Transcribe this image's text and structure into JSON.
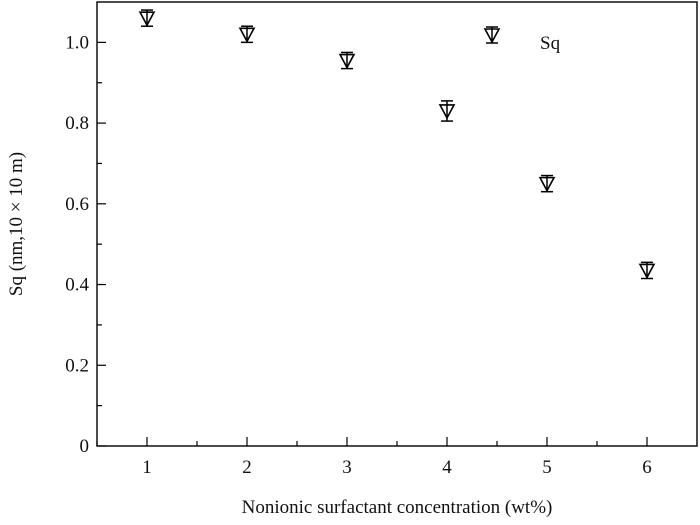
{
  "chart_data": {
    "type": "scatter",
    "title": "",
    "xlabel": "Nonionic surfactant concentration (wt%)",
    "ylabel": "Sq (nm,10 × 10 m)",
    "xlim": [
      0.5,
      6.5
    ],
    "ylim": [
      0,
      1.1
    ],
    "x_ticks": [
      "1",
      "2",
      "3",
      "4",
      "5",
      "6"
    ],
    "y_ticks": [
      "0",
      "0.2",
      "0.4",
      "0.6",
      "0.8",
      "1.0"
    ],
    "grid": false,
    "legend": {
      "position": "top-right",
      "entries": [
        "Sq"
      ]
    },
    "series": [
      {
        "name": "Sq",
        "marker": "triangle-down",
        "color": "#000000",
        "x": [
          1,
          2,
          3,
          4,
          5,
          6
        ],
        "y": [
          1.06,
          1.02,
          0.955,
          0.83,
          0.65,
          0.435
        ],
        "error": [
          0.02,
          0.02,
          0.02,
          0.025,
          0.02,
          0.02
        ]
      }
    ]
  }
}
